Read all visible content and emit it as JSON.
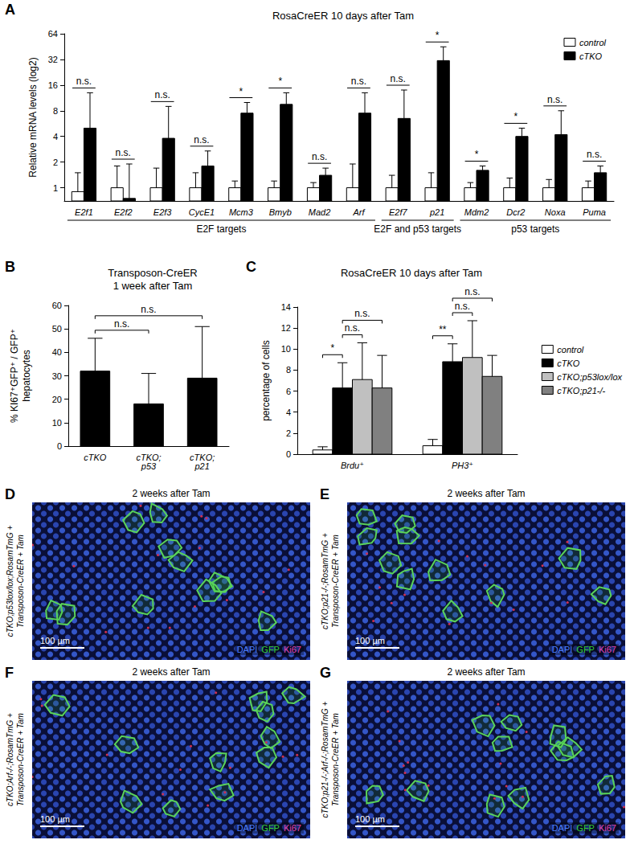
{
  "chart_data": [
    {
      "panel": "A",
      "type": "bar",
      "title": "RosaCreER 10 days after Tam",
      "ylabel": "Relative mRNA levels (log2)",
      "categories": [
        "E2f1",
        "E2f2",
        "E2f3",
        "CycE1",
        "Mcm3",
        "Bmyb",
        "Mad2",
        "Arf",
        "E2f7",
        "p21",
        "Mdm2",
        "Dcr2",
        "Noxa",
        "Puma"
      ],
      "series": [
        {
          "name": "control",
          "color": "#ffffff",
          "values": [
            0.9,
            1,
            1,
            1,
            1,
            1,
            1,
            1,
            1,
            1,
            1,
            1,
            1,
            1
          ],
          "errors": [
            0.6,
            0.8,
            0.7,
            0.5,
            0.2,
            0.2,
            0.15,
            0.9,
            0.4,
            0.5,
            0.15,
            0.3,
            0.25,
            0.2
          ]
        },
        {
          "name": "cTKO",
          "color": "#000000",
          "values": [
            5,
            0.75,
            3.8,
            1.8,
            7.5,
            9.5,
            1.4,
            7.5,
            6.5,
            31,
            1.6,
            4,
            4.2,
            1.5
          ],
          "errors": [
            8,
            1.15,
            5.2,
            0.9,
            2.5,
            3.5,
            0.3,
            5.5,
            7.5,
            14,
            0.2,
            1,
            3.8,
            0.3
          ]
        }
      ],
      "ylim": [
        0.7,
        64
      ],
      "yticks": [
        1,
        2,
        4,
        8,
        16,
        32,
        64
      ],
      "log": "y",
      "grid": false,
      "legend": "upper right",
      "significance": [
        "n.s.",
        "n.s.",
        "n.s.",
        "n.s.",
        "*",
        "*",
        "n.s.",
        "n.s.",
        "n.s.",
        "*",
        "*",
        "*",
        "n.s.",
        "n.s."
      ],
      "groups": [
        {
          "label": "E2F targets",
          "first": "E2f1",
          "last": "Arf"
        },
        {
          "label": "E2F and p53 targets",
          "first": "E2f7",
          "last": "p21"
        },
        {
          "label": "p53 targets",
          "first": "Mdm2",
          "last": "Puma"
        }
      ]
    },
    {
      "panel": "B",
      "type": "bar",
      "title": "Transposon-CreER\n1 week after Tam",
      "ylabel": "% KI67⁺GFP⁺ / GFP⁺\nhepatocytes",
      "categories": [
        "cTKO",
        "cTKO;\np53",
        "cTKO;\np21"
      ],
      "values": [
        32,
        18,
        29
      ],
      "errors": [
        14,
        13,
        22
      ],
      "color": "#000000",
      "ylim": [
        0,
        60
      ],
      "yticks": [
        0,
        10,
        20,
        30,
        40,
        50,
        60
      ],
      "grid": false,
      "comparisons": [
        {
          "pair": [
            0,
            1
          ],
          "label": "n.s."
        },
        {
          "pair": [
            0,
            2
          ],
          "label": "n.s."
        }
      ]
    },
    {
      "panel": "C",
      "type": "bar",
      "title": "RosaCreER 10 days after Tam",
      "ylabel": "percentage of cells",
      "categories": [
        "Brdu⁺",
        "PH3⁺"
      ],
      "series": [
        {
          "name": "control",
          "color": "#ffffff",
          "values": [
            0.4,
            0.8
          ],
          "errors": [
            0.3,
            0.6
          ]
        },
        {
          "name": "cTKO",
          "color": "#000000",
          "values": [
            6.3,
            8.8
          ],
          "errors": [
            2.4,
            1.7
          ]
        },
        {
          "name": "cTKO;p53lox/lox",
          "color": "#c0c0c0",
          "values": [
            7.1,
            9.2
          ],
          "errors": [
            3.5,
            3.5
          ]
        },
        {
          "name": "cTKO;p21-/-",
          "color": "#808080",
          "values": [
            6.3,
            7.4
          ],
          "errors": [
            3.1,
            2.0
          ]
        }
      ],
      "ylim": [
        0,
        14
      ],
      "yticks": [
        0,
        2,
        4,
        6,
        8,
        10,
        12,
        14
      ],
      "grid": false,
      "legend": "right",
      "comparisons": [
        {
          "category": 0,
          "pair": [
            0,
            1
          ],
          "label": "*"
        },
        {
          "category": 0,
          "pair": [
            1,
            2
          ],
          "label": "n.s."
        },
        {
          "category": 0,
          "pair": [
            1,
            3
          ],
          "label": "n.s."
        },
        {
          "category": 1,
          "pair": [
            0,
            1
          ],
          "label": "**"
        },
        {
          "category": 1,
          "pair": [
            1,
            2
          ],
          "label": "n.s."
        },
        {
          "category": 1,
          "pair": [
            1,
            3
          ],
          "label": "n.s."
        }
      ]
    }
  ],
  "image_panels": [
    {
      "panel": "D",
      "title": "2 weeks after Tam",
      "genotype": "cTKO;p53lox/lox;RosamTmG +\nTransposon-CreER + Tam",
      "scale_bar": "100 µm",
      "stains": [
        {
          "label": "DAPI",
          "color": "#4a7dff"
        },
        {
          "label": "GFP",
          "color": "#33cc33"
        },
        {
          "label": "Ki67",
          "color": "#e040b0"
        }
      ]
    },
    {
      "panel": "E",
      "title": "2 weeks after Tam",
      "genotype": "cTKO;p21-/-;RosamTmG +\nTransposon-CreER + Tam",
      "scale_bar": "100 µm",
      "stains": [
        {
          "label": "DAPI",
          "color": "#4a7dff"
        },
        {
          "label": "GFP",
          "color": "#33cc33"
        },
        {
          "label": "Ki67",
          "color": "#e040b0"
        }
      ]
    },
    {
      "panel": "F",
      "title": "2 weeks after Tam",
      "genotype": "cTKO;Arf-/-;RosamTmG +\nTransposon-CreER + Tam",
      "scale_bar": "100 µm",
      "stains": [
        {
          "label": "DAPI",
          "color": "#4a7dff"
        },
        {
          "label": "GFP",
          "color": "#33cc33"
        },
        {
          "label": "Ki67",
          "color": "#e040b0"
        }
      ]
    },
    {
      "panel": "G",
      "title": "2 weeks after Tam",
      "genotype": "cTKO;p21-/-;Arf-/-;RosamTmG +\nTransposon-CreER + Tam",
      "scale_bar": "100 µm",
      "stains": [
        {
          "label": "DAPI",
          "color": "#4a7dff"
        },
        {
          "label": "GFP",
          "color": "#33cc33"
        },
        {
          "label": "Ki67",
          "color": "#e040b0"
        }
      ]
    }
  ]
}
